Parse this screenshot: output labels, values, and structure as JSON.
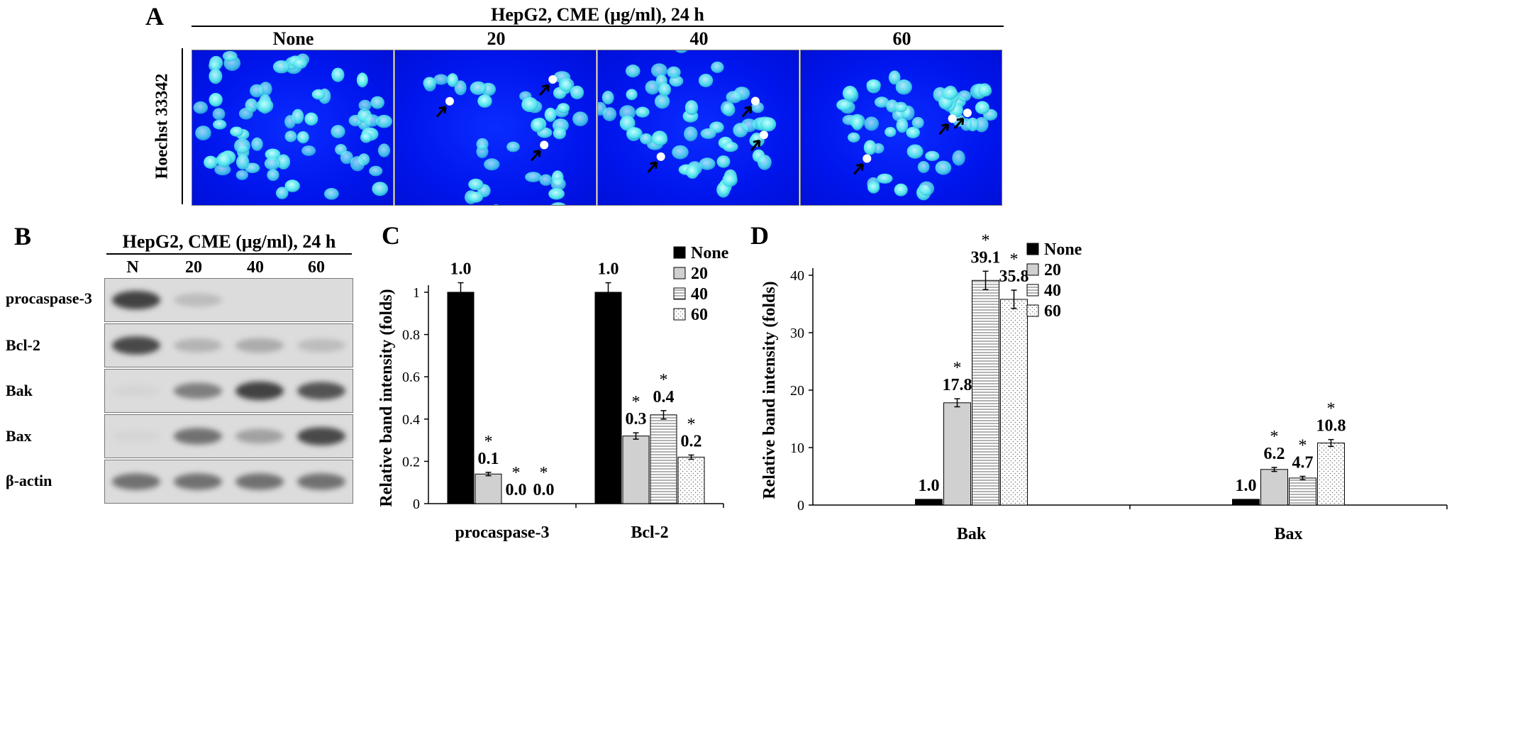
{
  "panelA": {
    "letter": "A",
    "header": "HepG2, CME (μg/ml), 24 h",
    "stain_label": "Hoechst 33342",
    "columns": [
      "None",
      "20",
      "40",
      "60"
    ]
  },
  "panelB": {
    "letter": "B",
    "header": "HepG2, CME (μg/ml), 24 h",
    "lanes": [
      "N",
      "20",
      "40",
      "60"
    ],
    "rows": [
      {
        "label": "procaspase-3",
        "intensity": [
          0.85,
          0.25,
          0.0,
          0.0
        ]
      },
      {
        "label": "Bcl-2",
        "intensity": [
          0.8,
          0.3,
          0.35,
          0.25
        ]
      },
      {
        "label": "Bak",
        "intensity": [
          0.05,
          0.55,
          0.85,
          0.75
        ]
      },
      {
        "label": "Bax",
        "intensity": [
          0.05,
          0.6,
          0.4,
          0.8
        ]
      },
      {
        "label": "β-actin",
        "intensity": [
          0.6,
          0.6,
          0.6,
          0.6
        ]
      }
    ]
  },
  "chart_data": [
    {
      "panel_letter": "C",
      "type": "bar",
      "ylabel": "Relative band intensity (folds)",
      "ylim": [
        0,
        1
      ],
      "yticks": [
        "0",
        "0.2",
        "0.4",
        "0.6",
        "0.8",
        "1"
      ],
      "categories": [
        "procaspase-3",
        "Bcl-2"
      ],
      "series": [
        {
          "name": "None",
          "fill": "solid",
          "values": [
            1.0,
            1.0
          ],
          "errors": [
            0.045,
            0.045
          ],
          "labels": [
            "1.0",
            "1.0"
          ],
          "star": [
            false,
            false
          ]
        },
        {
          "name": "20",
          "fill": "gray",
          "values": [
            0.14,
            0.32
          ],
          "errors": [
            0.008,
            0.015
          ],
          "labels": [
            "0.1",
            "0.3"
          ],
          "star": [
            true,
            true
          ]
        },
        {
          "name": "40",
          "fill": "hlines",
          "values": [
            0.0,
            0.42
          ],
          "errors": [
            0.0,
            0.02
          ],
          "labels": [
            "0.0",
            "0.4"
          ],
          "star": [
            true,
            true
          ]
        },
        {
          "name": "60",
          "fill": "dots",
          "values": [
            0.0,
            0.22
          ],
          "errors": [
            0.0,
            0.01
          ],
          "labels": [
            "0.0",
            "0.2"
          ],
          "star": [
            true,
            true
          ]
        }
      ],
      "legend_position": "top-right",
      "grid": false
    },
    {
      "panel_letter": "D",
      "type": "bar",
      "ylabel": "Relative band intensity (folds)",
      "ylim": [
        0,
        40
      ],
      "yticks": [
        "0",
        "10",
        "20",
        "30",
        "40"
      ],
      "categories": [
        "Bak",
        "Bax"
      ],
      "series": [
        {
          "name": "None",
          "fill": "solid",
          "values": [
            1.0,
            1.0
          ],
          "errors": [
            0.0,
            0.0
          ],
          "labels": [
            "1.0",
            "1.0"
          ],
          "star": [
            false,
            false
          ]
        },
        {
          "name": "20",
          "fill": "gray",
          "values": [
            17.8,
            6.2
          ],
          "errors": [
            0.7,
            0.35
          ],
          "labels": [
            "17.8",
            "6.2"
          ],
          "star": [
            true,
            true
          ]
        },
        {
          "name": "40",
          "fill": "hlines",
          "values": [
            39.1,
            4.7
          ],
          "errors": [
            1.6,
            0.3
          ],
          "labels": [
            "39.1",
            "4.7"
          ],
          "star": [
            true,
            true
          ]
        },
        {
          "name": "60",
          "fill": "dots",
          "values": [
            35.8,
            10.8
          ],
          "errors": [
            1.6,
            0.6
          ],
          "labels": [
            "35.8",
            "10.8"
          ],
          "star": [
            true,
            true
          ]
        }
      ],
      "legend_position": "top-right",
      "grid": false
    }
  ]
}
